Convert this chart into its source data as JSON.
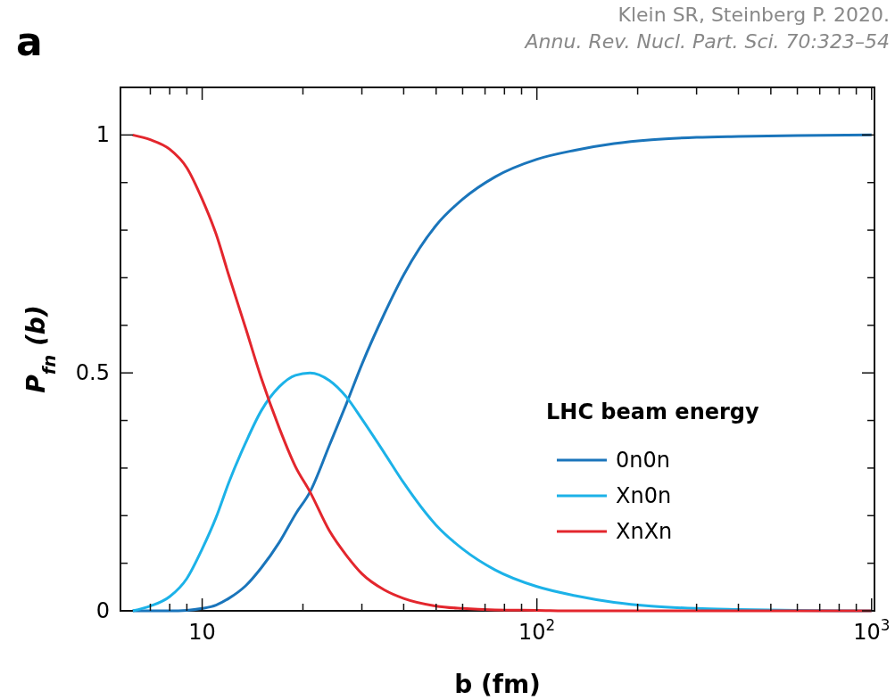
{
  "chart_data": {
    "type": "line",
    "title": "a",
    "xlabel": "b (fm)",
    "ylabel": "P$_{fn}$ (b)",
    "legend_title": "LHC beam energy",
    "legend": "bottom right",
    "log": "x",
    "xlim": [
      5.7,
      1020
    ],
    "ylim": [
      0,
      1.1
    ],
    "xticks": [
      {
        "value": 7,
        "label": null
      },
      {
        "value": 8,
        "label": null
      },
      {
        "value": 9,
        "label": null
      },
      {
        "value": 10,
        "label": "10"
      },
      {
        "value": 20,
        "label": null
      },
      {
        "value": 30,
        "label": null
      },
      {
        "value": 40,
        "label": null
      },
      {
        "value": 50,
        "label": null
      },
      {
        "value": 60,
        "label": null
      },
      {
        "value": 70,
        "label": null
      },
      {
        "value": 80,
        "label": null
      },
      {
        "value": 90,
        "label": null
      },
      {
        "value": 100,
        "label": "10$^{2}$"
      },
      {
        "value": 200,
        "label": null
      },
      {
        "value": 300,
        "label": null
      },
      {
        "value": 400,
        "label": null
      },
      {
        "value": 500,
        "label": null
      },
      {
        "value": 600,
        "label": null
      },
      {
        "value": 700,
        "label": null
      },
      {
        "value": 800,
        "label": null
      },
      {
        "value": 900,
        "label": null
      },
      {
        "value": 1000,
        "label": "10$^{3}$"
      }
    ],
    "yticks": [
      0,
      {
        "value": 0.1,
        "label": null
      },
      {
        "value": 0.2,
        "label": null
      },
      {
        "value": 0.3,
        "label": null
      },
      {
        "value": 0.4,
        "label": null
      },
      0.5,
      {
        "value": 0.6,
        "label": null
      },
      {
        "value": 0.7,
        "label": null
      },
      {
        "value": 0.8,
        "label": null
      },
      {
        "value": 0.9,
        "label": null
      },
      1
    ],
    "x": [
      6.2,
      7,
      8,
      9,
      10,
      11,
      12,
      13.5,
      15,
      17,
      19,
      21,
      24,
      27,
      30,
      35,
      40,
      50,
      60,
      75,
      100,
      130,
      170,
      220,
      300,
      400,
      600,
      1000
    ],
    "series": [
      {
        "name": "0n0n",
        "color": "#1a75bb",
        "values": [
          0,
          0,
          0,
          0.001,
          0.005,
          0.012,
          0.026,
          0.053,
          0.09,
          0.144,
          0.203,
          0.25,
          0.348,
          0.436,
          0.518,
          0.624,
          0.706,
          0.81,
          0.865,
          0.912,
          0.949,
          0.968,
          0.982,
          0.99,
          0.995,
          0.997,
          0.999,
          1
        ]
      },
      {
        "name": "Xn0n",
        "color": "#1cb2e8",
        "values": [
          0,
          0.01,
          0.03,
          0.068,
          0.13,
          0.196,
          0.269,
          0.354,
          0.42,
          0.471,
          0.495,
          0.5,
          0.484,
          0.449,
          0.403,
          0.332,
          0.269,
          0.18,
          0.13,
          0.086,
          0.051,
          0.032,
          0.018,
          0.01,
          0.005,
          0.003,
          0.001,
          0
        ]
      },
      {
        "name": "XnXn",
        "color": "#e3262d",
        "values": [
          1,
          0.99,
          0.97,
          0.931,
          0.865,
          0.792,
          0.706,
          0.593,
          0.49,
          0.384,
          0.303,
          0.25,
          0.168,
          0.116,
          0.078,
          0.044,
          0.026,
          0.01,
          0.005,
          0.002,
          0.001,
          0,
          0,
          0,
          0,
          0,
          0,
          0
        ]
      }
    ],
    "annotations": [
      "Klein SR, Steinberg P. 2020.",
      "Annu. Rev. Nucl. Part. Sci. 70:323–54"
    ]
  }
}
